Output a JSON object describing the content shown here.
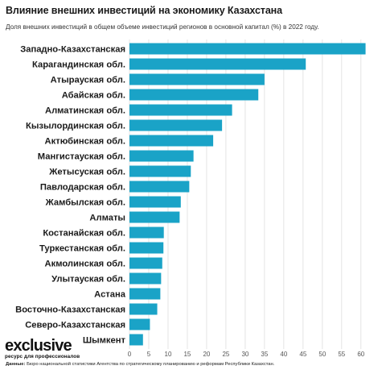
{
  "header": {
    "title": "Влияние внешних инвестиций на экономику Казахстана",
    "subtitle": "Доля внешних инвестиций в общем объеме инвестиций регионов в основной капитал (%) в 2022 году."
  },
  "logo": {
    "word": "exclusive",
    "tagline": "ресурс для профессионалов"
  },
  "footer": {
    "label": "Данные:",
    "source": "Бюро национальной статистики Агентства по стратегическому планированию и реформам Республики Казахстан."
  },
  "colors": {
    "bar": "#1aa3c7",
    "grid": "#dddddd",
    "text": "#1a1a1a"
  },
  "chart_data": {
    "type": "bar",
    "orientation": "horizontal",
    "categories": [
      "Западно-Казахстанская",
      "Карагандинская обл.",
      "Атырауская обл.",
      "Абайская обл.",
      "Алматинская обл.",
      "Кызылординская обл.",
      "Актюбинская обл.",
      "Мангистауская обл.",
      "Жетысуская обл.",
      "Павлодарская обл.",
      "Жамбылская обл.",
      "Алматы",
      "Костанайская обл.",
      "Туркестанская обл.",
      "Акмолинская обл.",
      "Улытауская обл.",
      "Астана",
      "Восточно-Казахстанская",
      "Северо-Казахстанская",
      "Шымкент"
    ],
    "values": [
      61.2,
      45.7,
      35.0,
      33.4,
      26.6,
      24.0,
      21.7,
      16.6,
      15.9,
      15.5,
      13.3,
      13.0,
      8.9,
      8.8,
      8.5,
      8.2,
      8.0,
      7.2,
      5.3,
      3.5
    ],
    "xticks": [
      0,
      5,
      10,
      15,
      20,
      25,
      30,
      35,
      40,
      45,
      50,
      55,
      60
    ],
    "xlim": [
      0,
      61.5
    ],
    "grid": true
  }
}
